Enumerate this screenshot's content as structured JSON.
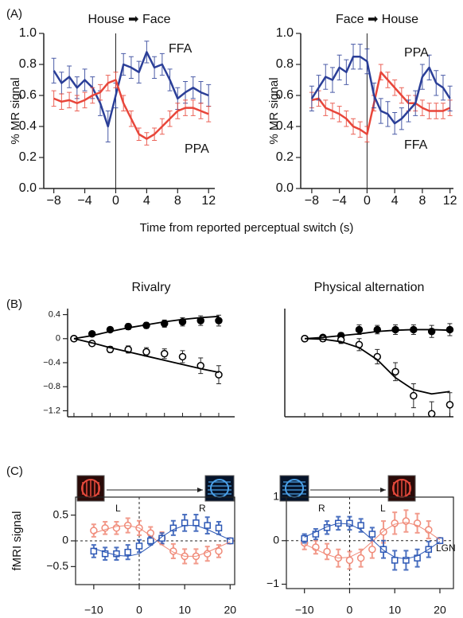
{
  "chart_data": [
    {
      "type": "line",
      "panel": "(A)",
      "title": "House ➡ Face",
      "ylabel": "% MR signal",
      "xlabel": "Time from reported perceptual switch (s)",
      "x": [
        -8,
        -7,
        -6,
        -5,
        -4,
        -3,
        -2,
        -1,
        0,
        1,
        2,
        3,
        4,
        5,
        6,
        7,
        8,
        9,
        10,
        11,
        12
      ],
      "xlim": [
        -9.3,
        12.8
      ],
      "ylim": [
        0,
        1
      ],
      "xticks": [
        {
          "value": -8,
          "label": "−8"
        },
        {
          "value": -4,
          "label": "−4"
        },
        0,
        4,
        8,
        12
      ],
      "yticks": [
        {
          "value": 0,
          "label": "0.0"
        },
        0.2,
        0.4,
        0.6,
        0.8,
        {
          "value": 1,
          "label": "1.0"
        }
      ],
      "reference_x": 0,
      "series": [
        {
          "name": "FFA",
          "color": "#2b3f98",
          "style": "line",
          "values": [
            0.76,
            0.68,
            0.72,
            0.65,
            0.7,
            0.65,
            0.55,
            0.4,
            0.6,
            0.8,
            0.78,
            0.75,
            0.88,
            0.78,
            0.8,
            0.7,
            0.58,
            0.62,
            0.65,
            0.62,
            0.6
          ],
          "errors": [
            0.08,
            0.07,
            0.07,
            0.07,
            0.07,
            0.07,
            0.08,
            0.1,
            0.08,
            0.07,
            0.07,
            0.07,
            0.07,
            0.07,
            0.07,
            0.07,
            0.07,
            0.07,
            0.07,
            0.07,
            0.07
          ]
        },
        {
          "name": "PPA",
          "color": "#e8463a",
          "style": "line",
          "values": [
            0.58,
            0.56,
            0.57,
            0.55,
            0.57,
            0.6,
            0.62,
            0.68,
            0.7,
            0.55,
            0.45,
            0.35,
            0.32,
            0.35,
            0.4,
            0.45,
            0.5,
            0.52,
            0.52,
            0.5,
            0.48
          ],
          "errors": [
            0.05,
            0.05,
            0.05,
            0.05,
            0.05,
            0.05,
            0.05,
            0.05,
            0.05,
            0.05,
            0.05,
            0.04,
            0.04,
            0.04,
            0.05,
            0.05,
            0.05,
            0.05,
            0.05,
            0.05,
            0.05
          ]
        }
      ]
    },
    {
      "type": "line",
      "title": "Face ➡ House",
      "ylabel": "% MR signal",
      "x": [
        -8,
        -7,
        -6,
        -5,
        -4,
        -3,
        -2,
        -1,
        0,
        1,
        2,
        3,
        4,
        5,
        6,
        7,
        8,
        9,
        10,
        11,
        12
      ],
      "xlim": [
        -9.6,
        12.5
      ],
      "ylim": [
        0,
        1
      ],
      "xticks": [
        {
          "value": -8,
          "label": "−8"
        },
        {
          "value": -4,
          "label": "−4"
        },
        0,
        4,
        8,
        12
      ],
      "yticks": [
        {
          "value": 0,
          "label": "0.0"
        },
        0.2,
        0.4,
        0.6,
        0.8,
        {
          "value": 1,
          "label": "1.0"
        }
      ],
      "reference_x": 0,
      "series": [
        {
          "name": "PPA",
          "color": "#e8463a",
          "style": "line",
          "values": [
            0.57,
            0.58,
            0.52,
            0.5,
            0.48,
            0.45,
            0.4,
            0.38,
            0.35,
            0.55,
            0.75,
            0.7,
            0.65,
            0.6,
            0.55,
            0.55,
            0.52,
            0.5,
            0.5,
            0.5,
            0.52
          ],
          "errors": [
            0.05,
            0.05,
            0.05,
            0.05,
            0.05,
            0.05,
            0.05,
            0.05,
            0.05,
            0.05,
            0.05,
            0.05,
            0.05,
            0.05,
            0.05,
            0.05,
            0.05,
            0.05,
            0.05,
            0.05,
            0.05
          ]
        },
        {
          "name": "FFA",
          "color": "#2b3f98",
          "style": "line",
          "values": [
            0.58,
            0.65,
            0.72,
            0.7,
            0.78,
            0.75,
            0.85,
            0.85,
            0.82,
            0.6,
            0.5,
            0.48,
            0.42,
            0.45,
            0.5,
            0.55,
            0.72,
            0.78,
            0.68,
            0.65,
            0.58
          ],
          "errors": [
            0.08,
            0.08,
            0.08,
            0.08,
            0.08,
            0.08,
            0.08,
            0.08,
            0.08,
            0.08,
            0.08,
            0.08,
            0.07,
            0.07,
            0.07,
            0.08,
            0.08,
            0.08,
            0.08,
            0.08,
            0.08
          ]
        }
      ]
    },
    {
      "type": "scatter",
      "panel": "(B)",
      "title": "Rivalry",
      "x": [
        0,
        1,
        2,
        3,
        4,
        5,
        6,
        7,
        8
      ],
      "xlim": [
        -0.35,
        8.88
      ],
      "ylim": [
        -1.3,
        0.5
      ],
      "yticks": [
        {
          "value": 0.4,
          "label": "0.4"
        },
        0,
        {
          "value": -0.4,
          "label": "−0.4"
        },
        {
          "value": -0.8,
          "label": "−0.8"
        },
        {
          "value": -1.2,
          "label": "−1.2"
        }
      ],
      "series": [
        {
          "color": "#000000",
          "style": "filled-circle",
          "values": [
            0,
            0.08,
            0.15,
            0.2,
            0.22,
            0.25,
            0.28,
            0.3,
            0.3
          ],
          "errors": [
            0.03,
            0.04,
            0.04,
            0.05,
            0.05,
            0.06,
            0.07,
            0.08,
            0.09
          ]
        },
        {
          "color": "#000000",
          "style": "open-circle",
          "values": [
            0,
            -0.08,
            -0.18,
            -0.18,
            -0.22,
            -0.25,
            -0.3,
            -0.45,
            -0.6
          ],
          "errors": [
            0.03,
            0.04,
            0.05,
            0.06,
            0.07,
            0.08,
            0.1,
            0.13,
            0.15
          ]
        },
        {
          "color": "#000000",
          "style": "line",
          "values": [
            0,
            0.05,
            0.12,
            0.18,
            0.23,
            0.28,
            0.32,
            0.35,
            0.37
          ]
        },
        {
          "color": "#000000",
          "style": "line",
          "values": [
            0,
            -0.07,
            -0.15,
            -0.22,
            -0.29,
            -0.36,
            -0.43,
            -0.5,
            -0.56
          ]
        }
      ]
    },
    {
      "type": "scatter",
      "title": "Physical alternation",
      "x": [
        0,
        1,
        2,
        3,
        4,
        5,
        6,
        7,
        8
      ],
      "xlim": [
        -1.1,
        8.2
      ],
      "ylim": [
        -1.3,
        0.5
      ],
      "series": [
        {
          "color": "#000000",
          "style": "filled-circle",
          "values": [
            0,
            0.02,
            0.05,
            0.15,
            0.15,
            0.15,
            0.15,
            0.12,
            0.15
          ],
          "errors": [
            0.03,
            0.04,
            0.05,
            0.08,
            0.07,
            0.08,
            0.08,
            0.1,
            0.1
          ]
        },
        {
          "color": "#000000",
          "style": "open-circle",
          "values": [
            0,
            0,
            -0.02,
            -0.1,
            -0.3,
            -0.55,
            -0.95,
            -1.25,
            -1.1
          ],
          "errors": [
            0.03,
            0.05,
            0.06,
            0.1,
            0.12,
            0.15,
            0.2,
            0.2,
            0.2
          ]
        },
        {
          "color": "#000000",
          "style": "line",
          "values": [
            0,
            0.02,
            0.05,
            0.08,
            0.12,
            0.14,
            0.15,
            0.15,
            0.14
          ]
        },
        {
          "color": "#000000",
          "style": "line",
          "values": [
            0,
            -0.01,
            -0.05,
            -0.15,
            -0.35,
            -0.65,
            -0.85,
            -0.92,
            -0.88
          ]
        }
      ]
    },
    {
      "type": "scatter",
      "panel": "(C)",
      "ylabel": "fMRI signal",
      "stimulus_sequence": [
        "L",
        "R"
      ],
      "frame": true,
      "x": [
        -10,
        -7.5,
        -5,
        -2.5,
        0,
        2.5,
        5,
        7.5,
        10,
        12.5,
        15,
        17.5,
        20
      ],
      "xlim": [
        -14,
        21
      ],
      "ylim": [
        -0.85,
        0.85
      ],
      "xticks": [
        {
          "value": -10,
          "label": "−10"
        },
        0,
        10,
        20
      ],
      "yticks": [
        0.5,
        0,
        {
          "value": -0.5,
          "label": "−0.5"
        }
      ],
      "reference_x": 0,
      "reference_y": 0,
      "series": [
        {
          "color": "#f08a78",
          "style": "open-circle",
          "values": [
            0.2,
            0.25,
            0.25,
            0.3,
            0.25,
            0.15,
            0.05,
            -0.2,
            -0.3,
            -0.3,
            -0.25,
            -0.2,
            0
          ],
          "errors": [
            0.12,
            0.12,
            0.12,
            0.14,
            0.14,
            0.12,
            0.12,
            0.14,
            0.14,
            0.14,
            0.14,
            0.12,
            0.03
          ]
        },
        {
          "color": "#2d58b5",
          "style": "open-square",
          "values": [
            -0.2,
            -0.25,
            -0.25,
            -0.22,
            -0.1,
            0,
            0.05,
            0.25,
            0.35,
            0.35,
            0.3,
            0.25,
            0
          ],
          "errors": [
            0.12,
            0.12,
            0.12,
            0.14,
            0.12,
            0.08,
            0.1,
            0.14,
            0.16,
            0.16,
            0.16,
            0.12,
            0.03
          ]
        },
        {
          "color": "#f08a78",
          "style": "line",
          "values": [
            0.15,
            0.22,
            0.28,
            0.3,
            0.25,
            0.1,
            -0.08,
            -0.22,
            -0.3,
            -0.3,
            -0.22,
            -0.12,
            -0.02
          ]
        },
        {
          "color": "#2d58b5",
          "style": "line",
          "values": [
            -0.15,
            -0.22,
            -0.28,
            -0.3,
            -0.25,
            -0.1,
            0.08,
            0.22,
            0.3,
            0.3,
            0.22,
            0.12,
            0.02
          ]
        }
      ]
    },
    {
      "type": "scatter",
      "stimulus_sequence": [
        "R",
        "L"
      ],
      "annotation": "LGN",
      "frame": true,
      "x": [
        -10,
        -7.5,
        -5,
        -2.5,
        0,
        2.5,
        5,
        7.5,
        10,
        12.5,
        15,
        17.5,
        20
      ],
      "xlim": [
        -14,
        23
      ],
      "ylim": [
        -1.1,
        1
      ],
      "xticks": [
        {
          "value": -10,
          "label": "−10"
        },
        0,
        10,
        20
      ],
      "yticks": [
        1,
        0,
        {
          "value": -1,
          "label": "−1"
        }
      ],
      "reference_x": 0,
      "reference_y": 0,
      "series": [
        {
          "color": "#f08a78",
          "style": "open-circle",
          "values": [
            -0.05,
            -0.15,
            -0.25,
            -0.4,
            -0.45,
            -0.4,
            -0.2,
            0.2,
            0.4,
            0.45,
            0.4,
            0.25,
            0
          ],
          "errors": [
            0.15,
            0.15,
            0.18,
            0.2,
            0.2,
            0.2,
            0.2,
            0.25,
            0.25,
            0.25,
            0.22,
            0.2,
            0.05
          ]
        },
        {
          "color": "#2d58b5",
          "style": "open-square",
          "values": [
            0.05,
            0.15,
            0.3,
            0.4,
            0.4,
            0.35,
            0.15,
            -0.2,
            -0.45,
            -0.45,
            -0.4,
            -0.2,
            0
          ],
          "errors": [
            0.1,
            0.12,
            0.15,
            0.15,
            0.15,
            0.15,
            0.15,
            0.2,
            0.22,
            0.22,
            0.2,
            0.18,
            0.05
          ]
        },
        {
          "color": "#f08a78",
          "style": "line",
          "values": [
            -0.08,
            -0.2,
            -0.32,
            -0.4,
            -0.38,
            -0.25,
            -0.02,
            0.22,
            0.38,
            0.42,
            0.35,
            0.2,
            0.02
          ]
        },
        {
          "color": "#2d58b5",
          "style": "line",
          "values": [
            0.08,
            0.2,
            0.32,
            0.4,
            0.38,
            0.25,
            0.02,
            -0.22,
            -0.38,
            -0.42,
            -0.35,
            -0.2,
            -0.02
          ]
        }
      ]
    }
  ]
}
